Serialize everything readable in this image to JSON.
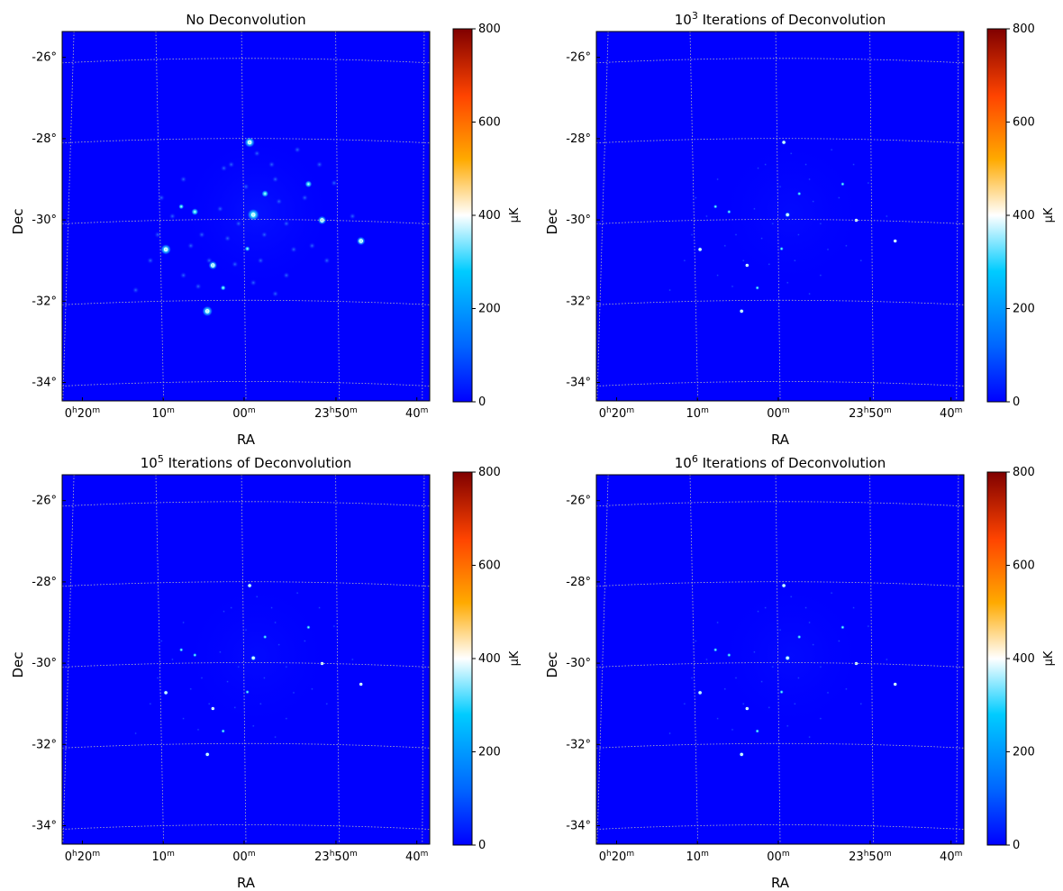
{
  "chart_data": [
    {
      "type": "heatmap",
      "title": "No Deconvolution",
      "title_parts": [
        {
          "text": "No Deconvolution",
          "sup": false
        }
      ],
      "xlabel": "RA",
      "ylabel": "Dec",
      "colorbar": {
        "label": "μK",
        "range": [
          0,
          800
        ],
        "ticks": [
          0,
          200,
          400,
          600,
          800
        ],
        "colormap": "jet-like (blue-cyan-white-orange-red)"
      },
      "dec_ticks": [
        -26,
        -28,
        -30,
        -32,
        -34
      ],
      "ra_ticks": [
        {
          "h": "0",
          "m": "20"
        },
        {
          "h": "",
          "m": "10"
        },
        {
          "h": "",
          "m": "00"
        },
        {
          "h": "23",
          "m": "50"
        },
        {
          "h": "",
          "m": "40"
        }
      ],
      "dec_range": [
        -34.5,
        -25.5
      ],
      "ra_range_hours": [
        0.36,
        23.64
      ],
      "grid": true,
      "background_value_uK": 0
    },
    {
      "type": "heatmap",
      "title": "10^3 Iterations of Deconvolution",
      "title_parts": [
        {
          "text": "10",
          "sup": false
        },
        {
          "text": "3",
          "sup": true
        },
        {
          "text": " Iterations of Deconvolution",
          "sup": false
        }
      ],
      "xlabel": "RA",
      "ylabel": "Dec",
      "colorbar": {
        "label": "μK",
        "range": [
          0,
          800
        ],
        "ticks": [
          0,
          200,
          400,
          600,
          800
        ],
        "colormap": "jet-like (blue-cyan-white-orange-red)"
      },
      "dec_ticks": [
        -26,
        -28,
        -30,
        -32,
        -34
      ],
      "ra_ticks": [
        {
          "h": "0",
          "m": "20"
        },
        {
          "h": "",
          "m": "10"
        },
        {
          "h": "",
          "m": "00"
        },
        {
          "h": "23",
          "m": "50"
        },
        {
          "h": "",
          "m": "40"
        }
      ],
      "dec_range": [
        -34.5,
        -25.5
      ],
      "ra_range_hours": [
        0.36,
        23.64
      ],
      "grid": true,
      "background_value_uK": 0
    },
    {
      "type": "heatmap",
      "title": "10^5 Iterations of Deconvolution",
      "title_parts": [
        {
          "text": "10",
          "sup": false
        },
        {
          "text": "5",
          "sup": true
        },
        {
          "text": " Iterations of Deconvolution",
          "sup": false
        }
      ],
      "xlabel": "RA",
      "ylabel": "Dec",
      "colorbar": {
        "label": "μK",
        "range": [
          0,
          800
        ],
        "ticks": [
          0,
          200,
          400,
          600,
          800
        ],
        "colormap": "jet-like (blue-cyan-white-orange-red)"
      },
      "dec_ticks": [
        -26,
        -28,
        -30,
        -32,
        -34
      ],
      "ra_ticks": [
        {
          "h": "0",
          "m": "20"
        },
        {
          "h": "",
          "m": "10"
        },
        {
          "h": "",
          "m": "00"
        },
        {
          "h": "23",
          "m": "50"
        },
        {
          "h": "",
          "m": "40"
        }
      ],
      "dec_range": [
        -34.5,
        -25.5
      ],
      "ra_range_hours": [
        0.36,
        23.64
      ],
      "grid": true,
      "background_value_uK": 0
    },
    {
      "type": "heatmap",
      "title": "10^6 Iterations of Deconvolution",
      "title_parts": [
        {
          "text": "10",
          "sup": false
        },
        {
          "text": "6",
          "sup": true
        },
        {
          "text": " Iterations of Deconvolution",
          "sup": false
        }
      ],
      "xlabel": "RA",
      "ylabel": "Dec",
      "colorbar": {
        "label": "μK",
        "range": [
          0,
          800
        ],
        "ticks": [
          0,
          200,
          400,
          600,
          800
        ],
        "colormap": "jet-like (blue-cyan-white-orange-red)"
      },
      "dec_ticks": [
        -26,
        -28,
        -30,
        -32,
        -34
      ],
      "ra_ticks": [
        {
          "h": "0",
          "m": "20"
        },
        {
          "h": "",
          "m": "10"
        },
        {
          "h": "",
          "m": "00"
        },
        {
          "h": "23",
          "m": "50"
        },
        {
          "h": "",
          "m": "40"
        }
      ],
      "dec_range": [
        -34.5,
        -25.5
      ],
      "ra_range_hours": [
        0.36,
        23.64
      ],
      "grid": true,
      "background_value_uK": 0
    }
  ],
  "colors": {
    "map_background": "#0000ff",
    "grid": "#bbbbbb",
    "colormap_stops": [
      "#0000ff",
      "#0066ff",
      "#00ccff",
      "#ffffff",
      "#ffaa00",
      "#ff4400",
      "#800000"
    ]
  }
}
